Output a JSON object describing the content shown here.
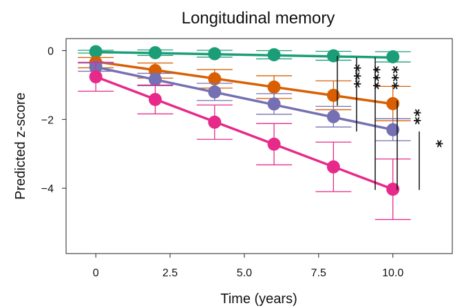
{
  "chart_data": {
    "type": "line",
    "title": "Longitudinal memory",
    "xlabel": "Time (years)",
    "ylabel": "Predicted z-score",
    "xlim": [
      -1.0,
      12.0
    ],
    "ylim": [
      -5.9,
      0.35
    ],
    "x_ticks": [
      0,
      2.5,
      5.0,
      7.5,
      10.0
    ],
    "x_tick_labels": [
      "0",
      "2.5",
      "5.0",
      "7.5",
      "10.0"
    ],
    "y_ticks": [
      0,
      -2,
      -4
    ],
    "y_tick_labels": [
      "0",
      "−2",
      "−4"
    ],
    "grid": false,
    "x": [
      0,
      2,
      4,
      6,
      8,
      10
    ],
    "series": [
      {
        "color": "#1b9e77",
        "values": [
          -0.03,
          -0.06,
          -0.09,
          -0.12,
          -0.15,
          -0.18
        ],
        "error": [
          0.04,
          0.08,
          0.1,
          0.12,
          0.13,
          0.15
        ],
        "line": [
          -0.04,
          -0.2
        ]
      },
      {
        "color": "#d95f02",
        "values": [
          -0.35,
          -0.58,
          -0.82,
          -1.06,
          -1.3,
          -1.54
        ],
        "error": [
          0.15,
          0.22,
          0.27,
          0.33,
          0.42,
          0.5
        ],
        "line": [
          -0.32,
          -1.55
        ]
      },
      {
        "color": "#7570b3",
        "values": [
          -0.48,
          -0.84,
          -1.2,
          -1.55,
          -1.92,
          -2.3
        ],
        "error": [
          0.12,
          0.18,
          0.25,
          0.3,
          0.3,
          0.32
        ],
        "line": [
          -0.48,
          -2.3
        ]
      },
      {
        "color": "#e7298a",
        "values": [
          -0.76,
          -1.42,
          -2.08,
          -2.72,
          -3.38,
          -4.03
        ],
        "error": [
          0.42,
          0.42,
          0.5,
          0.6,
          0.72,
          0.88
        ],
        "line": [
          -0.76,
          -4.03
        ]
      }
    ],
    "significance": [
      {
        "label": "***",
        "y_top": -0.15,
        "y_bottom": -1.6
      },
      {
        "label": "***",
        "y_top": -0.2,
        "y_bottom": -2.35
      },
      {
        "label": "***",
        "y_top": -0.2,
        "y_bottom": -4.05
      },
      {
        "label": "**",
        "y_top": -1.45,
        "y_bottom": -4.05
      },
      {
        "label": "*",
        "y_top": -2.35,
        "y_bottom": -4.05
      }
    ]
  }
}
